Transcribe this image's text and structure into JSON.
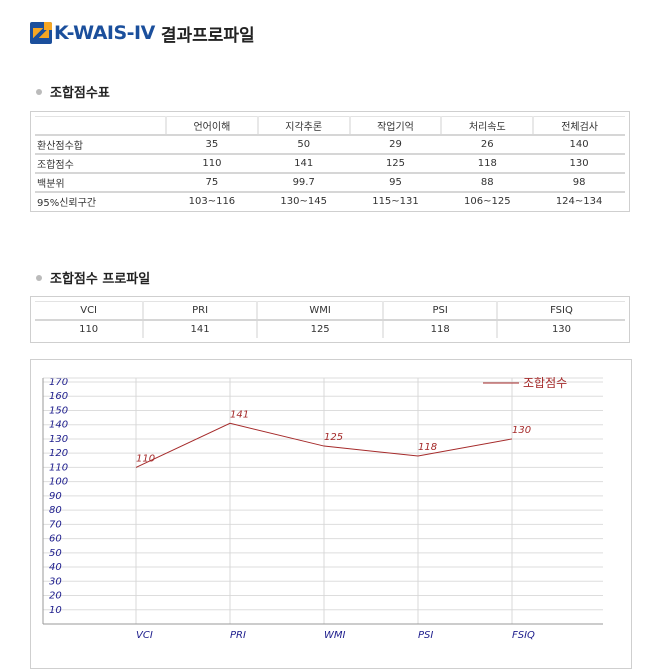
{
  "header": {
    "logo": "K-WAIS-IV",
    "title": "결과프로파일"
  },
  "section1": {
    "title": "조합점수표",
    "columns": [
      "",
      "언어이해",
      "지각추론",
      "작업기억",
      "처리속도",
      "전체검사"
    ],
    "rows": [
      {
        "label": "환산점수합",
        "values": [
          "35",
          "50",
          "29",
          "26",
          "140"
        ]
      },
      {
        "label": "조합점수",
        "values": [
          "110",
          "141",
          "125",
          "118",
          "130"
        ]
      },
      {
        "label": "백분위",
        "values": [
          "75",
          "99.7",
          "95",
          "88",
          "98"
        ]
      },
      {
        "label": "95%신뢰구간",
        "values": [
          "103~116",
          "130~145",
          "115~131",
          "106~125",
          "124~134"
        ]
      }
    ]
  },
  "section2": {
    "title": "조합점수 프로파일",
    "columns": [
      "VCI",
      "PRI",
      "WMI",
      "PSI",
      "FSIQ"
    ],
    "values": [
      "110",
      "141",
      "125",
      "118",
      "130"
    ]
  },
  "chart_data": {
    "type": "line",
    "categories": [
      "VCI",
      "PRI",
      "WMI",
      "PSI",
      "FSIQ"
    ],
    "series": [
      {
        "name": "조합점수",
        "values": [
          110,
          141,
          125,
          118,
          130
        ],
        "color": "#a52a2a"
      }
    ],
    "yticks": [
      10,
      20,
      30,
      40,
      50,
      60,
      70,
      80,
      90,
      100,
      110,
      120,
      130,
      140,
      150,
      160,
      170
    ],
    "ylim": [
      0,
      170
    ],
    "grid": true,
    "legend": "top-right",
    "axis_label_color": "#1c1c8c"
  }
}
